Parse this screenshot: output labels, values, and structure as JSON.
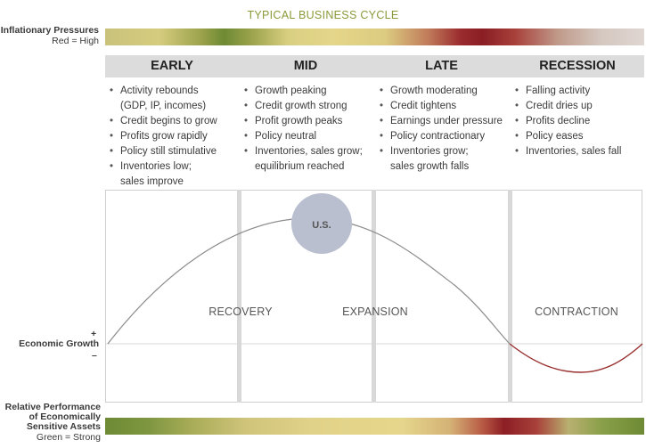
{
  "title": "TYPICAL BUSINESS CYCLE",
  "inflation": {
    "label": "Inflationary Pressures",
    "sub": "Red = High"
  },
  "phases": [
    {
      "name": "EARLY",
      "bullets": [
        "Activity rebounds",
        "(GDP, IP, incomes)",
        "Credit begins to grow",
        "Profits grow rapidly",
        "Policy still stimulative",
        "Inventories low;",
        "sales improve"
      ]
    },
    {
      "name": "MID",
      "bullets": [
        "Growth peaking",
        "Credit growth strong",
        "Profit growth peaks",
        "Policy neutral",
        "Inventories, sales grow;",
        "equilibrium reached"
      ]
    },
    {
      "name": "LATE",
      "bullets": [
        "Growth moderating",
        "Credit tightens",
        "Earnings under pressure",
        "Policy contractionary",
        "Inventories grow;",
        "sales growth falls"
      ]
    },
    {
      "name": "RECESSION",
      "bullets": [
        "Falling activity",
        "Credit dries up",
        "Profits decline",
        "Policy eases",
        "Inventories, sales fall"
      ]
    }
  ],
  "stages": {
    "recovery": "RECOVERY",
    "expansion": "EXPANSION",
    "contraction": "CONTRACTION"
  },
  "marker": {
    "label": "U.S.",
    "color": "#b9bfcf"
  },
  "axis": {
    "plus": "+",
    "label": "Economic Growth",
    "minus": "–"
  },
  "performance": {
    "label_line1": "Relative Performance",
    "label_line2": "of Economically",
    "label_line3": "Sensitive Assets",
    "sub": "Green = Strong"
  },
  "colors": {
    "curve": "#8c8c8c",
    "curve_contraction": "#9a3030",
    "accent_green": "#8a9a3a"
  }
}
